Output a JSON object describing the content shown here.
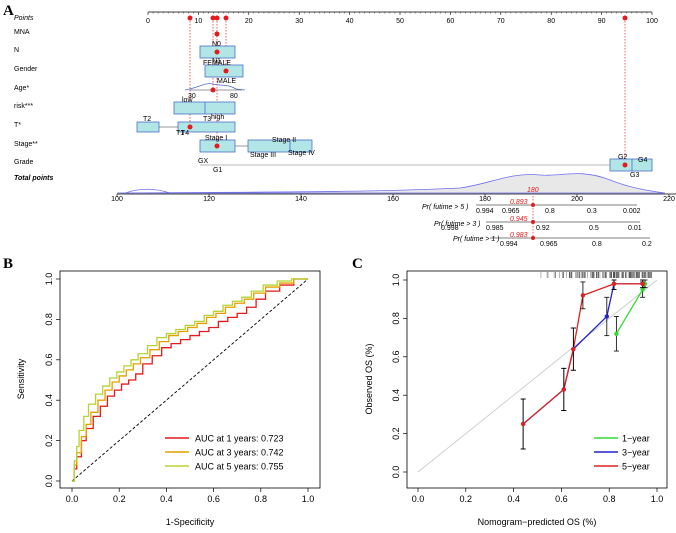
{
  "panel_a": {
    "letter": "A",
    "rows": [
      {
        "label": "Points",
        "italic": true
      },
      {
        "label": "MNA"
      },
      {
        "label": "N"
      },
      {
        "label": "Gender"
      },
      {
        "label": "Age*"
      },
      {
        "label": "risk***"
      },
      {
        "label": "T*"
      },
      {
        "label": "Stage**"
      },
      {
        "label": "Grade"
      },
      {
        "label": "Total points",
        "italic": true,
        "bold": true
      }
    ],
    "points_ticks": [
      "0",
      "10",
      "20",
      "30",
      "40",
      "50",
      "60",
      "70",
      "80",
      "90",
      "100"
    ],
    "total_ticks": [
      "100",
      "120",
      "140",
      "160",
      "180",
      "200",
      "220"
    ],
    "category_labels": {
      "n0": "N0",
      "n1": "N1",
      "female": "FEMALE",
      "male": "MALE",
      "age30": "30",
      "age80": "80",
      "low": "low",
      "high": "high",
      "t2": "T2",
      "t3": "T3",
      "t1": "T1",
      "t4": "T4",
      "stage1": "Stage I",
      "stage2": "Stage II",
      "stage3": "Stage III",
      "stage4": "Stage IV",
      "gx": "GX",
      "g1": "G1",
      "g2": "G2",
      "g3": "G3",
      "g4": "G4"
    },
    "total_value": "180",
    "prob_rows": [
      {
        "label": "Pr( futime > 5 )",
        "ticks": [
          "0.994",
          "0.965",
          "0.8",
          "0.3",
          "0.002"
        ],
        "value": "0.893"
      },
      {
        "label": "Pr( futime > 3 )",
        "ticks": [
          "0.998",
          "0.985",
          "0.92",
          "0.5",
          "0.01"
        ],
        "value": "0.945"
      },
      {
        "label": "Pr( futime > 1 )",
        "ticks": [
          "0.994",
          "0.965",
          "0.8",
          "0.2"
        ],
        "value": "0.983"
      }
    ]
  },
  "chart_data": [
    {
      "type": "line",
      "panel": "B",
      "title": "",
      "xlabel": "1-Specificity",
      "ylabel": "Sensitivity",
      "xlim": [
        0,
        1
      ],
      "ylim": [
        0,
        1
      ],
      "x_ticks": [
        "0.0",
        "0.2",
        "0.4",
        "0.6",
        "0.8",
        "1.0"
      ],
      "y_ticks": [
        "0.0",
        "0.2",
        "0.4",
        "0.6",
        "0.8",
        "1.0"
      ],
      "legend_position": "bottom-right",
      "series": [
        {
          "name": "AUC at 1 years: 0.723",
          "color": "#e41a1c",
          "x": [
            0,
            0.01,
            0.02,
            0.04,
            0.06,
            0.09,
            0.12,
            0.15,
            0.18,
            0.21,
            0.24,
            0.27,
            0.3,
            0.34,
            0.38,
            0.42,
            0.46,
            0.5,
            0.54,
            0.58,
            0.62,
            0.66,
            0.7,
            0.74,
            0.78,
            0.82,
            0.88,
            0.94,
            1.0
          ],
          "y": [
            0,
            0.06,
            0.12,
            0.2,
            0.26,
            0.32,
            0.37,
            0.42,
            0.45,
            0.48,
            0.5,
            0.53,
            0.58,
            0.62,
            0.66,
            0.68,
            0.7,
            0.72,
            0.74,
            0.76,
            0.79,
            0.81,
            0.83,
            0.86,
            0.9,
            0.94,
            0.97,
            1.0,
            1.0
          ]
        },
        {
          "name": "AUC at 3 years: 0.742",
          "color": "#e69f00",
          "x": [
            0,
            0.01,
            0.02,
            0.04,
            0.06,
            0.08,
            0.11,
            0.14,
            0.17,
            0.2,
            0.23,
            0.26,
            0.29,
            0.33,
            0.37,
            0.41,
            0.45,
            0.49,
            0.53,
            0.57,
            0.61,
            0.65,
            0.69,
            0.73,
            0.77,
            0.82,
            0.88,
            0.94,
            1.0
          ],
          "y": [
            0,
            0.08,
            0.14,
            0.22,
            0.28,
            0.34,
            0.4,
            0.45,
            0.49,
            0.52,
            0.55,
            0.58,
            0.61,
            0.65,
            0.69,
            0.72,
            0.74,
            0.76,
            0.78,
            0.81,
            0.83,
            0.86,
            0.88,
            0.9,
            0.93,
            0.96,
            0.98,
            1.0,
            1.0
          ]
        },
        {
          "name": "AUC at 5 years: 0.755",
          "color": "#b5d334",
          "x": [
            0,
            0.01,
            0.02,
            0.03,
            0.05,
            0.07,
            0.1,
            0.13,
            0.16,
            0.19,
            0.22,
            0.25,
            0.28,
            0.32,
            0.36,
            0.4,
            0.44,
            0.48,
            0.52,
            0.56,
            0.6,
            0.64,
            0.68,
            0.72,
            0.76,
            0.81,
            0.87,
            0.93,
            1.0
          ],
          "y": [
            0,
            0.1,
            0.17,
            0.25,
            0.32,
            0.38,
            0.43,
            0.47,
            0.51,
            0.54,
            0.57,
            0.6,
            0.63,
            0.67,
            0.71,
            0.73,
            0.75,
            0.77,
            0.79,
            0.82,
            0.84,
            0.87,
            0.89,
            0.91,
            0.94,
            0.97,
            0.99,
            1.0,
            1.0
          ]
        }
      ]
    },
    {
      "type": "line",
      "panel": "C",
      "title": "",
      "xlabel": "Nomogram−predicted OS (%)",
      "ylabel": "Observed OS (%)",
      "xlim": [
        0,
        1
      ],
      "ylim": [
        0,
        1
      ],
      "x_ticks": [
        "0.0",
        "0.2",
        "0.4",
        "0.6",
        "0.8",
        "1.0"
      ],
      "y_ticks": [
        "0.0",
        "0.2",
        "0.4",
        "0.6",
        "0.8",
        "1.0"
      ],
      "legend_position": "bottom-right",
      "series": [
        {
          "name": "1−year",
          "color": "#33dd33",
          "x": [
            0.83,
            0.94,
            0.95
          ],
          "y": [
            0.72,
            0.95,
            0.98
          ],
          "err": [
            0.09,
            0.04,
            0.02
          ]
        },
        {
          "name": "3−year",
          "color": "#2222cc",
          "x": [
            0.44,
            0.61,
            0.65,
            0.79,
            0.82,
            0.94
          ],
          "y": [
            0.25,
            0.43,
            0.64,
            0.81,
            0.98,
            0.98
          ],
          "err": [
            0.13,
            0.11,
            0.11,
            0.1,
            0.03,
            0.02
          ]
        },
        {
          "name": "5−year",
          "color": "#dd2222",
          "x": [
            0.44,
            0.61,
            0.65,
            0.69,
            0.82,
            0.94
          ],
          "y": [
            0.25,
            0.43,
            0.64,
            0.92,
            0.98,
            0.98
          ],
          "err": [
            0.13,
            0.11,
            0.11,
            0.07,
            0.03,
            0.02
          ]
        }
      ]
    }
  ],
  "panel_letters": {
    "b": "B",
    "c": "C"
  }
}
